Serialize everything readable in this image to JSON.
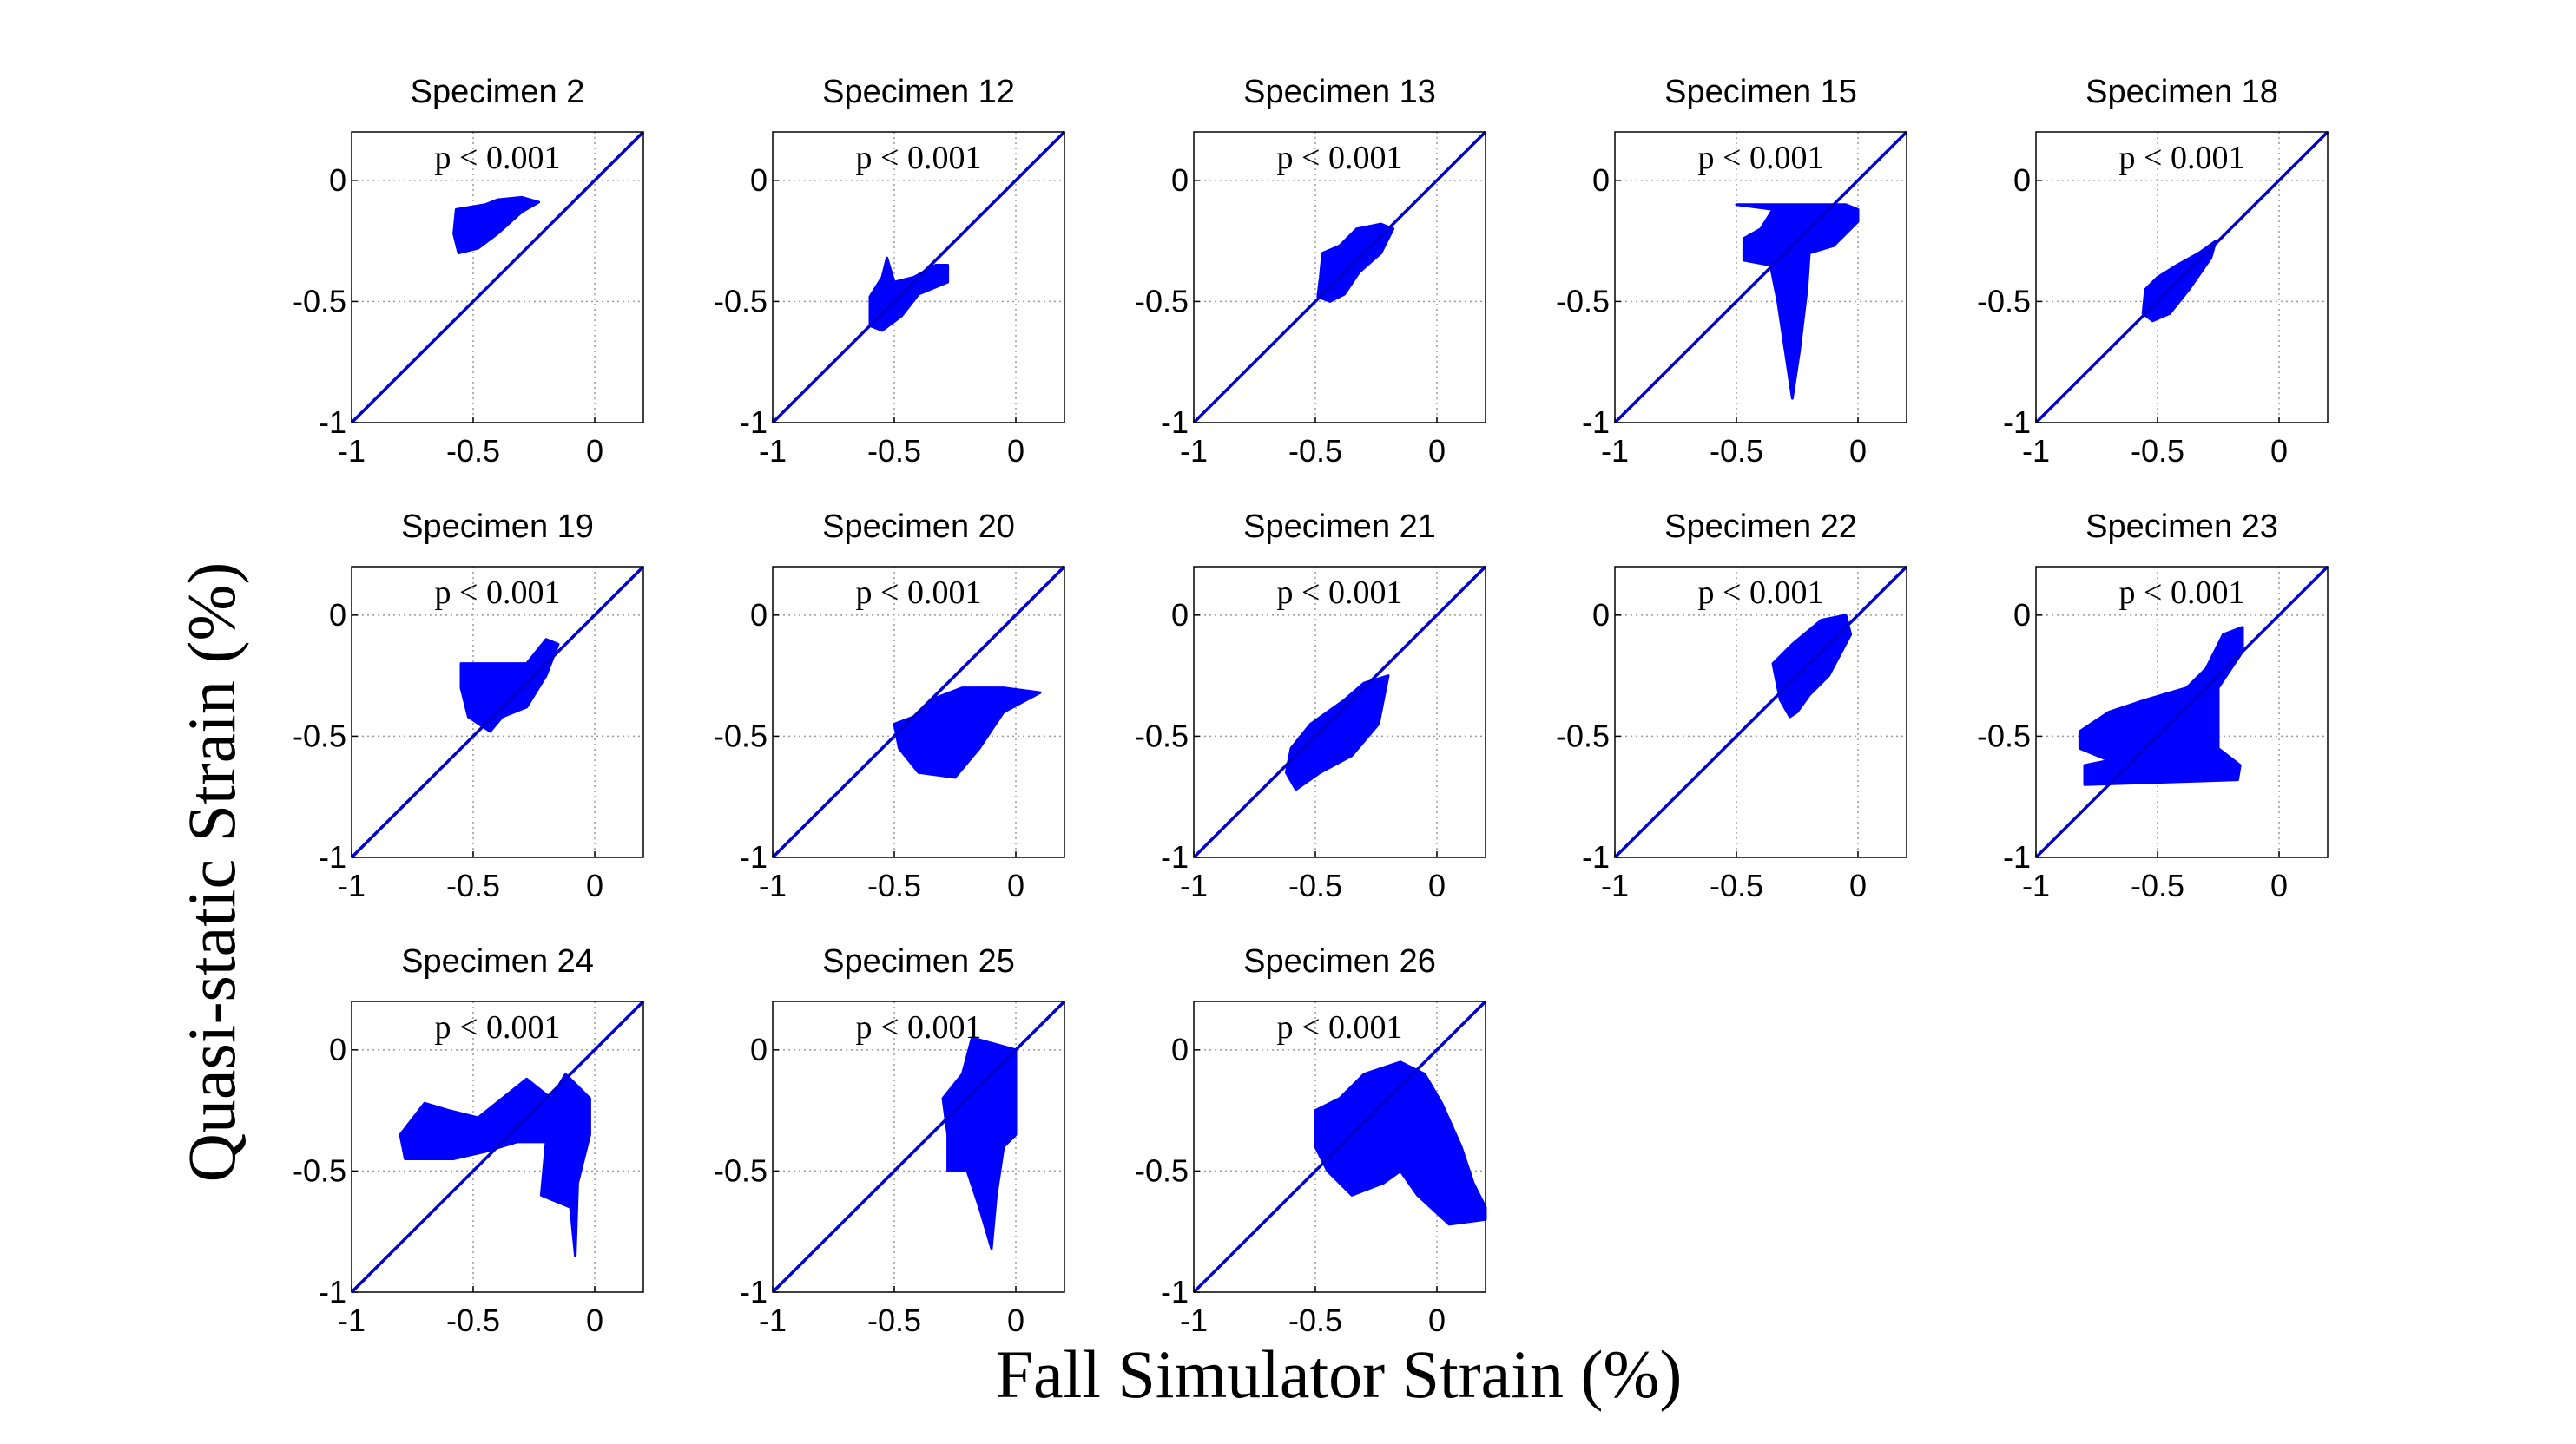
{
  "figure": {
    "xlabel": "Fall Simulator Strain (%)",
    "ylabel": "Quasi-static Strain (%)",
    "colors": {
      "data": "#0000ff",
      "identity_line": "#0000cc",
      "grid": "#9a9a9a",
      "axis": "#000000"
    }
  },
  "chart_data": [
    {
      "type": "scatter",
      "title": "Specimen 2",
      "annotation": "p < 0.001",
      "xlim": [
        -1,
        0.2
      ],
      "ylim": [
        -1,
        0.2
      ],
      "xticks": [
        -1,
        -0.5,
        0
      ],
      "yticks": [
        -1,
        -0.5,
        0
      ],
      "xtick_labels": [
        "-1",
        "-0.5",
        "0"
      ],
      "ytick_labels": [
        "-1",
        "-0.5",
        "0"
      ],
      "grid": true,
      "identity_line": true,
      "region": [
        [
          -0.57,
          -0.12
        ],
        [
          -0.45,
          -0.1
        ],
        [
          -0.4,
          -0.08
        ],
        [
          -0.3,
          -0.07
        ],
        [
          -0.23,
          -0.09
        ],
        [
          -0.3,
          -0.13
        ],
        [
          -0.4,
          -0.22
        ],
        [
          -0.48,
          -0.28
        ],
        [
          -0.56,
          -0.3
        ],
        [
          -0.58,
          -0.22
        ]
      ]
    },
    {
      "type": "scatter",
      "title": "Specimen 12",
      "annotation": "p < 0.001",
      "xlim": [
        -1,
        0.2
      ],
      "ylim": [
        -1,
        0.2
      ],
      "xticks": [
        -1,
        -0.5,
        0
      ],
      "yticks": [
        -1,
        -0.5,
        0
      ],
      "xtick_labels": [
        "-1",
        "-0.5",
        "0"
      ],
      "ytick_labels": [
        "-1",
        "-0.5",
        "0"
      ],
      "grid": true,
      "identity_line": true,
      "region": [
        [
          -0.6,
          -0.48
        ],
        [
          -0.55,
          -0.4
        ],
        [
          -0.53,
          -0.32
        ],
        [
          -0.5,
          -0.42
        ],
        [
          -0.42,
          -0.4
        ],
        [
          -0.33,
          -0.35
        ],
        [
          -0.28,
          -0.35
        ],
        [
          -0.28,
          -0.42
        ],
        [
          -0.4,
          -0.47
        ],
        [
          -0.47,
          -0.56
        ],
        [
          -0.55,
          -0.62
        ],
        [
          -0.6,
          -0.6
        ]
      ]
    },
    {
      "type": "scatter",
      "title": "Specimen 13",
      "annotation": "p < 0.001",
      "xlim": [
        -1,
        0.2
      ],
      "ylim": [
        -1,
        0.2
      ],
      "xticks": [
        -1,
        -0.5,
        0
      ],
      "yticks": [
        -1,
        -0.5,
        0
      ],
      "xtick_labels": [
        "-1",
        "-0.5",
        "0"
      ],
      "ytick_labels": [
        "-1",
        "-0.5",
        "0"
      ],
      "grid": true,
      "identity_line": true,
      "region": [
        [
          -0.48,
          -0.4
        ],
        [
          -0.47,
          -0.3
        ],
        [
          -0.4,
          -0.27
        ],
        [
          -0.33,
          -0.2
        ],
        [
          -0.23,
          -0.18
        ],
        [
          -0.18,
          -0.2
        ],
        [
          -0.23,
          -0.3
        ],
        [
          -0.32,
          -0.38
        ],
        [
          -0.38,
          -0.47
        ],
        [
          -0.44,
          -0.5
        ],
        [
          -0.49,
          -0.48
        ]
      ]
    },
    {
      "type": "scatter",
      "title": "Specimen 15",
      "annotation": "p < 0.001",
      "xlim": [
        -1,
        0.2
      ],
      "ylim": [
        -1,
        0.2
      ],
      "xticks": [
        -1,
        -0.5,
        0
      ],
      "yticks": [
        -1,
        -0.5,
        0
      ],
      "xtick_labels": [
        "-1",
        "-0.5",
        "0"
      ],
      "ytick_labels": [
        "-1",
        "-0.5",
        "0"
      ],
      "grid": true,
      "identity_line": true,
      "region": [
        [
          -0.5,
          -0.1
        ],
        [
          -0.05,
          -0.1
        ],
        [
          0.0,
          -0.12
        ],
        [
          0.0,
          -0.17
        ],
        [
          -0.1,
          -0.27
        ],
        [
          -0.2,
          -0.3
        ],
        [
          -0.21,
          -0.45
        ],
        [
          -0.24,
          -0.7
        ],
        [
          -0.27,
          -0.9
        ],
        [
          -0.3,
          -0.7
        ],
        [
          -0.33,
          -0.5
        ],
        [
          -0.36,
          -0.35
        ],
        [
          -0.47,
          -0.33
        ],
        [
          -0.47,
          -0.24
        ],
        [
          -0.4,
          -0.2
        ],
        [
          -0.35,
          -0.12
        ]
      ]
    },
    {
      "type": "scatter",
      "title": "Specimen 18",
      "annotation": "p < 0.001",
      "xlim": [
        -1,
        0.2
      ],
      "ylim": [
        -1,
        0.2
      ],
      "xticks": [
        -1,
        -0.5,
        0
      ],
      "yticks": [
        -1,
        -0.5,
        0
      ],
      "xtick_labels": [
        "-1",
        "-0.5",
        "0"
      ],
      "ytick_labels": [
        "-1",
        "-0.5",
        "0"
      ],
      "grid": true,
      "identity_line": true,
      "region": [
        [
          -0.55,
          -0.45
        ],
        [
          -0.5,
          -0.4
        ],
        [
          -0.42,
          -0.35
        ],
        [
          -0.33,
          -0.3
        ],
        [
          -0.26,
          -0.25
        ],
        [
          -0.28,
          -0.32
        ],
        [
          -0.37,
          -0.45
        ],
        [
          -0.45,
          -0.55
        ],
        [
          -0.52,
          -0.58
        ],
        [
          -0.56,
          -0.55
        ]
      ]
    },
    {
      "type": "scatter",
      "title": "Specimen 19",
      "annotation": "p < 0.001",
      "xlim": [
        -1,
        0.2
      ],
      "ylim": [
        -1,
        0.2
      ],
      "xticks": [
        -1,
        -0.5,
        0
      ],
      "yticks": [
        -1,
        -0.5,
        0
      ],
      "xtick_labels": [
        "-1",
        "-0.5",
        "0"
      ],
      "ytick_labels": [
        "-1",
        "-0.5",
        "0"
      ],
      "grid": true,
      "identity_line": true,
      "region": [
        [
          -0.55,
          -0.2
        ],
        [
          -0.28,
          -0.2
        ],
        [
          -0.2,
          -0.1
        ],
        [
          -0.15,
          -0.12
        ],
        [
          -0.2,
          -0.25
        ],
        [
          -0.28,
          -0.38
        ],
        [
          -0.38,
          -0.42
        ],
        [
          -0.43,
          -0.48
        ],
        [
          -0.52,
          -0.42
        ],
        [
          -0.55,
          -0.3
        ]
      ]
    },
    {
      "type": "scatter",
      "title": "Specimen 20",
      "annotation": "p < 0.001",
      "xlim": [
        -1,
        0.2
      ],
      "ylim": [
        -1,
        0.2
      ],
      "xticks": [
        -1,
        -0.5,
        0
      ],
      "yticks": [
        -1,
        -0.5,
        0
      ],
      "xtick_labels": [
        "-1",
        "-0.5",
        "0"
      ],
      "ytick_labels": [
        "-1",
        "-0.5",
        "0"
      ],
      "grid": true,
      "identity_line": true,
      "region": [
        [
          -0.5,
          -0.45
        ],
        [
          -0.42,
          -0.42
        ],
        [
          -0.35,
          -0.35
        ],
        [
          -0.22,
          -0.3
        ],
        [
          -0.05,
          -0.3
        ],
        [
          0.1,
          -0.32
        ],
        [
          -0.05,
          -0.4
        ],
        [
          -0.15,
          -0.55
        ],
        [
          -0.25,
          -0.67
        ],
        [
          -0.4,
          -0.65
        ],
        [
          -0.48,
          -0.55
        ]
      ]
    },
    {
      "type": "scatter",
      "title": "Specimen 21",
      "annotation": "p < 0.001",
      "xlim": [
        -1,
        0.2
      ],
      "ylim": [
        -1,
        0.2
      ],
      "xticks": [
        -1,
        -0.5,
        0
      ],
      "yticks": [
        -1,
        -0.5,
        0
      ],
      "xtick_labels": [
        "-1",
        "-0.5",
        "0"
      ],
      "ytick_labels": [
        "-1",
        "-0.5",
        "0"
      ],
      "grid": true,
      "identity_line": true,
      "region": [
        [
          -0.6,
          -0.55
        ],
        [
          -0.52,
          -0.45
        ],
        [
          -0.45,
          -0.4
        ],
        [
          -0.38,
          -0.35
        ],
        [
          -0.3,
          -0.28
        ],
        [
          -0.2,
          -0.25
        ],
        [
          -0.24,
          -0.45
        ],
        [
          -0.35,
          -0.58
        ],
        [
          -0.48,
          -0.65
        ],
        [
          -0.58,
          -0.72
        ],
        [
          -0.62,
          -0.65
        ]
      ]
    },
    {
      "type": "scatter",
      "title": "Specimen 22",
      "annotation": "p < 0.001",
      "xlim": [
        -1,
        0.2
      ],
      "ylim": [
        -1,
        0.2
      ],
      "xticks": [
        -1,
        -0.5,
        0
      ],
      "yticks": [
        -1,
        -0.5,
        0
      ],
      "xtick_labels": [
        "-1",
        "-0.5",
        "0"
      ],
      "ytick_labels": [
        "-1",
        "-0.5",
        "0"
      ],
      "grid": true,
      "identity_line": true,
      "region": [
        [
          -0.35,
          -0.2
        ],
        [
          -0.27,
          -0.12
        ],
        [
          -0.15,
          -0.02
        ],
        [
          -0.05,
          0.0
        ],
        [
          -0.03,
          -0.08
        ],
        [
          -0.12,
          -0.25
        ],
        [
          -0.2,
          -0.33
        ],
        [
          -0.25,
          -0.4
        ],
        [
          -0.28,
          -0.42
        ],
        [
          -0.32,
          -0.35
        ]
      ]
    },
    {
      "type": "scatter",
      "title": "Specimen 23",
      "annotation": "p < 0.001",
      "xlim": [
        -1,
        0.2
      ],
      "ylim": [
        -1,
        0.2
      ],
      "xticks": [
        -1,
        -0.5,
        0
      ],
      "yticks": [
        -1,
        -0.5,
        0
      ],
      "xtick_labels": [
        "-1",
        "-0.5",
        "0"
      ],
      "ytick_labels": [
        "-1",
        "-0.5",
        "0"
      ],
      "grid": true,
      "identity_line": true,
      "region": [
        [
          -0.82,
          -0.48
        ],
        [
          -0.7,
          -0.4
        ],
        [
          -0.55,
          -0.35
        ],
        [
          -0.38,
          -0.3
        ],
        [
          -0.3,
          -0.22
        ],
        [
          -0.23,
          -0.08
        ],
        [
          -0.15,
          -0.05
        ],
        [
          -0.15,
          -0.15
        ],
        [
          -0.25,
          -0.3
        ],
        [
          -0.25,
          -0.55
        ],
        [
          -0.16,
          -0.62
        ],
        [
          -0.17,
          -0.68
        ],
        [
          -0.8,
          -0.7
        ],
        [
          -0.8,
          -0.62
        ],
        [
          -0.7,
          -0.6
        ],
        [
          -0.82,
          -0.55
        ]
      ]
    },
    {
      "type": "scatter",
      "title": "Specimen 24",
      "annotation": "p < 0.001",
      "xlim": [
        -1,
        0.2
      ],
      "ylim": [
        -1,
        0.2
      ],
      "xticks": [
        -1,
        -0.5,
        0
      ],
      "yticks": [
        -1,
        -0.5,
        0
      ],
      "xtick_labels": [
        "-1",
        "-0.5",
        "0"
      ],
      "ytick_labels": [
        "-1",
        "-0.5",
        "0"
      ],
      "grid": true,
      "identity_line": true,
      "region": [
        [
          -0.8,
          -0.35
        ],
        [
          -0.7,
          -0.22
        ],
        [
          -0.6,
          -0.25
        ],
        [
          -0.48,
          -0.28
        ],
        [
          -0.38,
          -0.2
        ],
        [
          -0.28,
          -0.12
        ],
        [
          -0.18,
          -0.2
        ],
        [
          -0.12,
          -0.1
        ],
        [
          -0.02,
          -0.2
        ],
        [
          -0.02,
          -0.35
        ],
        [
          -0.07,
          -0.55
        ],
        [
          -0.08,
          -0.85
        ],
        [
          -0.1,
          -0.65
        ],
        [
          -0.22,
          -0.6
        ],
        [
          -0.2,
          -0.38
        ],
        [
          -0.32,
          -0.38
        ],
        [
          -0.45,
          -0.42
        ],
        [
          -0.58,
          -0.45
        ],
        [
          -0.78,
          -0.45
        ]
      ]
    },
    {
      "type": "scatter",
      "title": "Specimen 25",
      "annotation": "p < 0.001",
      "xlim": [
        -1,
        0.2
      ],
      "ylim": [
        -1,
        0.2
      ],
      "xticks": [
        -1,
        -0.5,
        0
      ],
      "yticks": [
        -1,
        -0.5,
        0
      ],
      "xtick_labels": [
        "-1",
        "-0.5",
        "0"
      ],
      "ytick_labels": [
        "-1",
        "-0.5",
        "0"
      ],
      "grid": true,
      "identity_line": true,
      "region": [
        [
          -0.3,
          -0.2
        ],
        [
          -0.22,
          -0.1
        ],
        [
          -0.18,
          0.05
        ],
        [
          0.0,
          0.0
        ],
        [
          0.0,
          -0.35
        ],
        [
          -0.05,
          -0.4
        ],
        [
          -0.08,
          -0.6
        ],
        [
          -0.1,
          -0.82
        ],
        [
          -0.15,
          -0.65
        ],
        [
          -0.2,
          -0.5
        ],
        [
          -0.28,
          -0.5
        ],
        [
          -0.28,
          -0.35
        ]
      ]
    },
    {
      "type": "scatter",
      "title": "Specimen 26",
      "annotation": "p < 0.001",
      "xlim": [
        -1,
        0.2
      ],
      "ylim": [
        -1,
        0.2
      ],
      "xticks": [
        -1,
        -0.5,
        0
      ],
      "yticks": [
        -1,
        -0.5,
        0
      ],
      "xtick_labels": [
        "-1",
        "-0.5",
        "0"
      ],
      "ytick_labels": [
        "-1",
        "-0.5",
        "0"
      ],
      "grid": true,
      "identity_line": true,
      "region": [
        [
          -0.5,
          -0.25
        ],
        [
          -0.4,
          -0.2
        ],
        [
          -0.3,
          -0.1
        ],
        [
          -0.15,
          -0.05
        ],
        [
          -0.05,
          -0.1
        ],
        [
          0.02,
          -0.22
        ],
        [
          0.1,
          -0.4
        ],
        [
          0.15,
          -0.55
        ],
        [
          0.2,
          -0.65
        ],
        [
          0.2,
          -0.7
        ],
        [
          0.05,
          -0.72
        ],
        [
          -0.08,
          -0.6
        ],
        [
          -0.15,
          -0.5
        ],
        [
          -0.22,
          -0.55
        ],
        [
          -0.35,
          -0.6
        ],
        [
          -0.45,
          -0.5
        ],
        [
          -0.5,
          -0.4
        ]
      ]
    }
  ]
}
